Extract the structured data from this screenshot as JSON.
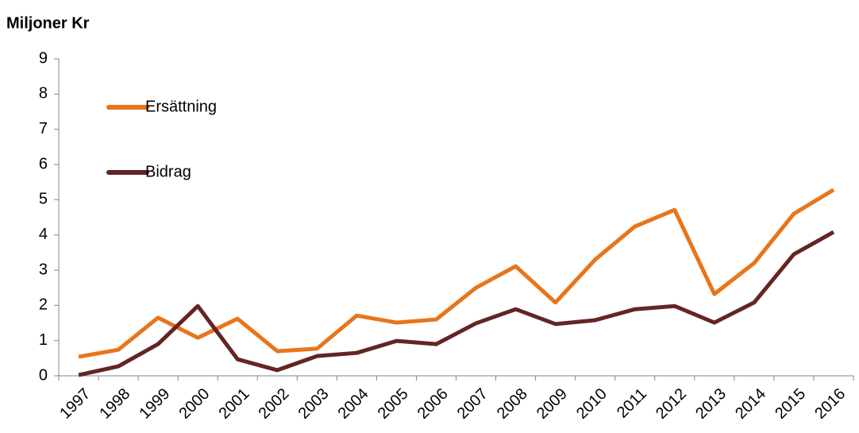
{
  "chart_data": {
    "type": "line",
    "title": "Miljoner Kr",
    "categories": [
      "1997",
      "1998",
      "1999",
      "2000",
      "2001",
      "2002",
      "2003",
      "2004",
      "2005",
      "2006",
      "2007",
      "2008",
      "2009",
      "2010",
      "2011",
      "2012",
      "2013",
      "2014",
      "2015",
      "2016"
    ],
    "series": [
      {
        "name": "Ersättning",
        "color": "#e8751a",
        "values": [
          0.54,
          0.74,
          1.65,
          1.08,
          1.62,
          0.7,
          0.77,
          1.71,
          1.51,
          1.6,
          2.5,
          3.11,
          2.08,
          3.3,
          4.24,
          4.71,
          2.32,
          3.2,
          4.6,
          5.28
        ]
      },
      {
        "name": "Bidrag",
        "color": "#632523",
        "values": [
          0.02,
          0.27,
          0.9,
          1.98,
          0.47,
          0.16,
          0.56,
          0.65,
          0.99,
          0.9,
          1.49,
          1.89,
          1.47,
          1.58,
          1.89,
          1.98,
          1.51,
          2.08,
          3.45,
          4.08
        ]
      }
    ],
    "ylim": [
      0,
      9
    ],
    "yticks": [
      0,
      1,
      2,
      3,
      4,
      5,
      6,
      7,
      8,
      9
    ],
    "grid": false,
    "legend_position": "upper left"
  }
}
